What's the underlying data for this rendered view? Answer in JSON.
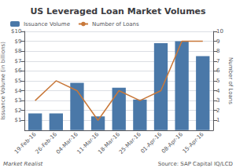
{
  "chart_data": {
    "type": "bar",
    "title": "US Leveraged Loan Market Volumes",
    "categories": [
      "19-Feb-16",
      "26-Feb-16",
      "04-Mar-16",
      "11-Mar-16",
      "18-Mar-16",
      "25-Mar-16",
      "01-Apr-16",
      "08-Apr-16",
      "15-Apr-16"
    ],
    "series": [
      {
        "name": "Issuance Volume",
        "type": "bar",
        "color": "#4a78a8",
        "values": [
          1.7,
          1.7,
          4.8,
          1.4,
          4.3,
          3.1,
          8.8,
          9.0,
          7.5
        ]
      },
      {
        "name": "Number of Loans",
        "type": "line",
        "color": "#c8783a",
        "axis": "y2",
        "line_style": "solid",
        "values": [
          3,
          5,
          4,
          1,
          4,
          3,
          4,
          9,
          9
        ]
      }
    ],
    "ylabel": "Issuance Volume (in billions)",
    "y2label": "Number of Loans",
    "ylim": [
      0,
      10
    ],
    "yticks": [
      {
        "value": 1,
        "label": "$1"
      },
      {
        "value": 2,
        "label": "$2"
      },
      {
        "value": 3,
        "label": "$3"
      },
      {
        "value": 4,
        "label": "$4"
      },
      {
        "value": 5,
        "label": "$5"
      },
      {
        "value": 6,
        "label": "$6"
      },
      {
        "value": 7,
        "label": "$7"
      },
      {
        "value": 8,
        "label": "$8"
      },
      {
        "value": 9,
        "label": "$9"
      },
      {
        "value": 10,
        "label": "$10"
      }
    ],
    "y2lim": [
      0,
      10
    ],
    "y2ticks": [
      1,
      2,
      3,
      4,
      5,
      6,
      7,
      8,
      9,
      10
    ],
    "grid": true,
    "legend": "upper left",
    "annotations": [
      "Market Realist",
      "Source: SAP Capital IQ/LCD"
    ]
  }
}
